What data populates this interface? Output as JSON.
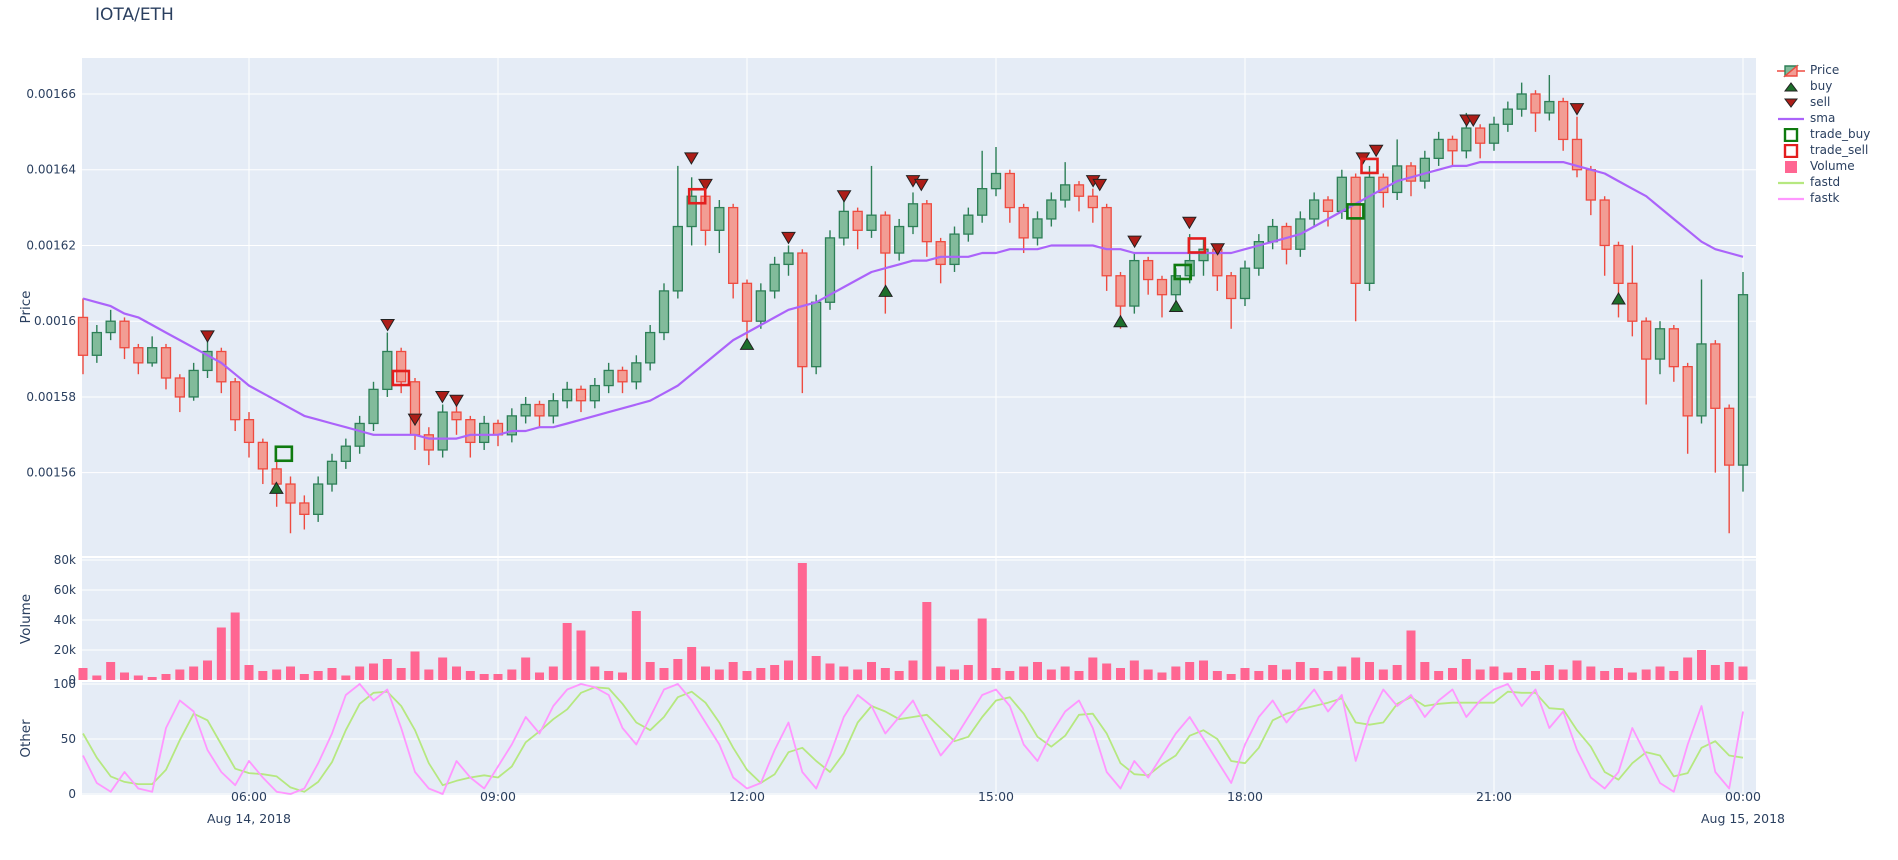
{
  "title": "IOTA/ETH",
  "colors": {
    "paper": "#ffffff",
    "plot_bg": "#e5ecf6",
    "grid": "#ffffff",
    "text": "#2a3f5f",
    "candle_up_line": "#2d7f57",
    "candle_up_fill": "#82bb9b",
    "candle_down_line": "#ee4b40",
    "candle_down_fill": "#f29d94",
    "sma": "#ab63fa",
    "volume": "#ff6692",
    "fastd": "#b6e880",
    "fastk": "#ff97ff",
    "buy_marker": "#1d6f2b",
    "sell_marker": "#ad1d18",
    "marker_edge": "#222222",
    "trade_buy": "#0f7a0f",
    "trade_sell": "#e31e1e"
  },
  "legend": {
    "items": [
      {
        "label": "Price",
        "type": "candle"
      },
      {
        "label": "buy",
        "type": "triangle-up"
      },
      {
        "label": "sell",
        "type": "triangle-down"
      },
      {
        "label": "sma",
        "type": "line",
        "color": "#ab63fa"
      },
      {
        "label": "trade_buy",
        "type": "open-square",
        "color": "#0f7a0f"
      },
      {
        "label": "trade_sell",
        "type": "open-square",
        "color": "#e31e1e"
      },
      {
        "label": "Volume",
        "type": "filled-square",
        "color": "#ff6692"
      },
      {
        "label": "fastd",
        "type": "line",
        "color": "#b6e880"
      },
      {
        "label": "fastk",
        "type": "line",
        "color": "#ff97ff"
      }
    ]
  },
  "axes": {
    "x": {
      "ticks": [
        {
          "label": "06:00",
          "t": 6
        },
        {
          "label": "09:00",
          "t": 9
        },
        {
          "label": "12:00",
          "t": 12
        },
        {
          "label": "15:00",
          "t": 15
        },
        {
          "label": "18:00",
          "t": 18
        },
        {
          "label": "21:00",
          "t": 21
        },
        {
          "label": "00:00",
          "t": 24
        }
      ],
      "date_labels": [
        {
          "label": "Aug 14, 2018",
          "t": 6
        },
        {
          "label": "Aug 15, 2018",
          "t": 24
        }
      ],
      "range_hours": [
        3.99,
        24.16
      ]
    },
    "price": {
      "title": "Price",
      "ticks": [
        {
          "label": "0.00166",
          "v": 1660
        },
        {
          "label": "0.00164",
          "v": 1640
        },
        {
          "label": "0.00162",
          "v": 1620
        },
        {
          "label": "0.0016",
          "v": 1600
        },
        {
          "label": "0.00158",
          "v": 1580
        },
        {
          "label": "0.00156",
          "v": 1560
        }
      ],
      "range_micro": [
        1538,
        1669.5
      ]
    },
    "volume": {
      "title": "Volume",
      "ticks": [
        {
          "label": "80k",
          "v": 80
        },
        {
          "label": "60k",
          "v": 60
        },
        {
          "label": "40k",
          "v": 40
        },
        {
          "label": "20k",
          "v": 20
        },
        {
          "label": "0",
          "v": 0
        }
      ],
      "range_k": [
        0,
        81.3
      ]
    },
    "other": {
      "title": "Other",
      "ticks": [
        {
          "label": "100",
          "v": 100
        },
        {
          "label": "50",
          "v": 50
        },
        {
          "label": "0",
          "v": 0
        }
      ],
      "range": [
        0,
        102
      ]
    }
  },
  "chart_data": {
    "type": "candlestick",
    "pair": "IOTA/ETH",
    "start": "2018-08-14 04:00",
    "end": "2018-08-15 00:00",
    "step_minutes": 10,
    "price_unit_note": "prices stored as micro units, value = price * 1e6 (1602 = 0.001602)",
    "ohlc_micro": [
      [
        1601,
        1606,
        1586,
        1591
      ],
      [
        1591,
        1599,
        1589,
        1597
      ],
      [
        1597,
        1603,
        1595,
        1600
      ],
      [
        1600,
        1601,
        1590,
        1593
      ],
      [
        1593,
        1594,
        1586,
        1589
      ],
      [
        1589,
        1596,
        1588,
        1593
      ],
      [
        1593,
        1594,
        1582,
        1585
      ],
      [
        1585,
        1586,
        1576,
        1580
      ],
      [
        1580,
        1589,
        1579,
        1587
      ],
      [
        1587,
        1595,
        1585,
        1592
      ],
      [
        1592,
        1593,
        1581,
        1584
      ],
      [
        1584,
        1585,
        1571,
        1574
      ],
      [
        1574,
        1576,
        1564,
        1568
      ],
      [
        1568,
        1569,
        1557,
        1561
      ],
      [
        1561,
        1563,
        1551,
        1557
      ],
      [
        1557,
        1559,
        1544,
        1552
      ],
      [
        1552,
        1554,
        1545,
        1549
      ],
      [
        1549,
        1559,
        1547,
        1557
      ],
      [
        1557,
        1565,
        1555,
        1563
      ],
      [
        1563,
        1569,
        1561,
        1567
      ],
      [
        1567,
        1575,
        1565,
        1573
      ],
      [
        1573,
        1584,
        1571,
        1582
      ],
      [
        1582,
        1597,
        1580,
        1592
      ],
      [
        1592,
        1593,
        1581,
        1584
      ],
      [
        1584,
        1585,
        1566,
        1570
      ],
      [
        1570,
        1572,
        1562,
        1566
      ],
      [
        1566,
        1578,
        1564,
        1576
      ],
      [
        1576,
        1578,
        1570,
        1574
      ],
      [
        1574,
        1575,
        1564,
        1568
      ],
      [
        1568,
        1575,
        1566,
        1573
      ],
      [
        1573,
        1574,
        1567,
        1570
      ],
      [
        1570,
        1577,
        1568,
        1575
      ],
      [
        1575,
        1580,
        1573,
        1578
      ],
      [
        1578,
        1579,
        1572,
        1575
      ],
      [
        1575,
        1581,
        1573,
        1579
      ],
      [
        1579,
        1584,
        1577,
        1582
      ],
      [
        1582,
        1583,
        1576,
        1579
      ],
      [
        1579,
        1585,
        1577,
        1583
      ],
      [
        1583,
        1589,
        1581,
        1587
      ],
      [
        1587,
        1588,
        1581,
        1584
      ],
      [
        1584,
        1591,
        1582,
        1589
      ],
      [
        1589,
        1599,
        1587,
        1597
      ],
      [
        1597,
        1610,
        1595,
        1608
      ],
      [
        1608,
        1641,
        1606,
        1625
      ],
      [
        1625,
        1638,
        1620,
        1633
      ],
      [
        1633,
        1634,
        1620,
        1624
      ],
      [
        1624,
        1632,
        1618,
        1630
      ],
      [
        1630,
        1631,
        1606,
        1610
      ],
      [
        1610,
        1611,
        1594,
        1600
      ],
      [
        1600,
        1610,
        1598,
        1608
      ],
      [
        1608,
        1617,
        1606,
        1615
      ],
      [
        1615,
        1620,
        1612,
        1618
      ],
      [
        1618,
        1619,
        1581,
        1588
      ],
      [
        1588,
        1607,
        1586,
        1605
      ],
      [
        1605,
        1624,
        1603,
        1622
      ],
      [
        1622,
        1632,
        1620,
        1629
      ],
      [
        1629,
        1630,
        1619,
        1624
      ],
      [
        1624,
        1641,
        1622,
        1628
      ],
      [
        1628,
        1629,
        1602,
        1618
      ],
      [
        1618,
        1627,
        1616,
        1625
      ],
      [
        1625,
        1634,
        1623,
        1631
      ],
      [
        1631,
        1632,
        1617,
        1621
      ],
      [
        1621,
        1622,
        1610,
        1615
      ],
      [
        1615,
        1625,
        1613,
        1623
      ],
      [
        1623,
        1630,
        1621,
        1628
      ],
      [
        1628,
        1645,
        1626,
        1635
      ],
      [
        1635,
        1646,
        1633,
        1639
      ],
      [
        1639,
        1640,
        1626,
        1630
      ],
      [
        1630,
        1631,
        1618,
        1622
      ],
      [
        1622,
        1629,
        1620,
        1627
      ],
      [
        1627,
        1634,
        1625,
        1632
      ],
      [
        1632,
        1642,
        1630,
        1636
      ],
      [
        1636,
        1637,
        1629,
        1633
      ],
      [
        1633,
        1635,
        1626,
        1630
      ],
      [
        1630,
        1631,
        1608,
        1612
      ],
      [
        1612,
        1613,
        1598,
        1604
      ],
      [
        1604,
        1618,
        1602,
        1616
      ],
      [
        1616,
        1617,
        1607,
        1611
      ],
      [
        1611,
        1612,
        1601,
        1607
      ],
      [
        1607,
        1614,
        1603,
        1612
      ],
      [
        1612,
        1623,
        1610,
        1616
      ],
      [
        1616,
        1622,
        1612,
        1619
      ],
      [
        1619,
        1620,
        1608,
        1612
      ],
      [
        1612,
        1613,
        1598,
        1606
      ],
      [
        1606,
        1616,
        1604,
        1614
      ],
      [
        1614,
        1623,
        1612,
        1621
      ],
      [
        1621,
        1627,
        1619,
        1625
      ],
      [
        1625,
        1626,
        1615,
        1619
      ],
      [
        1619,
        1629,
        1617,
        1627
      ],
      [
        1627,
        1634,
        1625,
        1632
      ],
      [
        1632,
        1633,
        1625,
        1629
      ],
      [
        1629,
        1640,
        1627,
        1638
      ],
      [
        1638,
        1639,
        1600,
        1610
      ],
      [
        1610,
        1641,
        1608,
        1638
      ],
      [
        1638,
        1639,
        1630,
        1634
      ],
      [
        1634,
        1648,
        1632,
        1641
      ],
      [
        1641,
        1642,
        1633,
        1637
      ],
      [
        1637,
        1645,
        1635,
        1643
      ],
      [
        1643,
        1650,
        1641,
        1648
      ],
      [
        1648,
        1649,
        1641,
        1645
      ],
      [
        1645,
        1655,
        1643,
        1651
      ],
      [
        1651,
        1652,
        1643,
        1647
      ],
      [
        1647,
        1654,
        1645,
        1652
      ],
      [
        1652,
        1658,
        1650,
        1656
      ],
      [
        1656,
        1663,
        1654,
        1660
      ],
      [
        1660,
        1661,
        1650,
        1655
      ],
      [
        1655,
        1665,
        1653,
        1658
      ],
      [
        1658,
        1659,
        1645,
        1648
      ],
      [
        1648,
        1654,
        1638,
        1640
      ],
      [
        1640,
        1641,
        1628,
        1632
      ],
      [
        1632,
        1633,
        1612,
        1620
      ],
      [
        1620,
        1621,
        1601,
        1610
      ],
      [
        1610,
        1620,
        1596,
        1600
      ],
      [
        1600,
        1601,
        1578,
        1590
      ],
      [
        1590,
        1600,
        1586,
        1598
      ],
      [
        1598,
        1599,
        1584,
        1588
      ],
      [
        1588,
        1589,
        1565,
        1575
      ],
      [
        1575,
        1611,
        1573,
        1594
      ],
      [
        1594,
        1595,
        1560,
        1577
      ],
      [
        1577,
        1578,
        1544,
        1562
      ],
      [
        1562,
        1613,
        1555,
        1607
      ]
    ],
    "sma_micro": [
      1606,
      1605,
      1604,
      1602,
      1601,
      1599,
      1597,
      1595,
      1593,
      1591,
      1589,
      1586,
      1583,
      1581,
      1579,
      1577,
      1575,
      1574,
      1573,
      1572,
      1571,
      1570,
      1570,
      1570,
      1570,
      1569,
      1569,
      1569,
      1570,
      1570,
      1570,
      1571,
      1571,
      1572,
      1572,
      1573,
      1574,
      1575,
      1576,
      1577,
      1578,
      1579,
      1581,
      1583,
      1586,
      1589,
      1592,
      1595,
      1597,
      1599,
      1601,
      1603,
      1604,
      1605,
      1607,
      1609,
      1611,
      1613,
      1614,
      1615,
      1616,
      1616,
      1617,
      1617,
      1617,
      1618,
      1618,
      1619,
      1619,
      1619,
      1620,
      1620,
      1620,
      1620,
      1619,
      1619,
      1618,
      1618,
      1618,
      1618,
      1618,
      1618,
      1618,
      1618,
      1619,
      1620,
      1621,
      1622,
      1623,
      1625,
      1627,
      1629,
      1631,
      1633,
      1635,
      1637,
      1638,
      1639,
      1640,
      1641,
      1641,
      1642,
      1642,
      1642,
      1642,
      1642,
      1642,
      1642,
      1641,
      1640,
      1639,
      1637,
      1635,
      1633,
      1630,
      1627,
      1624,
      1621,
      1619,
      1618,
      1617
    ],
    "volume_k": [
      8,
      3,
      12,
      5,
      3,
      2,
      4,
      7,
      9,
      13,
      35,
      45,
      10,
      6,
      7,
      9,
      4,
      6,
      8,
      3,
      9,
      11,
      14,
      8,
      19,
      7,
      15,
      9,
      6,
      4,
      4,
      7,
      15,
      5,
      9,
      38,
      33,
      9,
      6,
      5,
      46,
      12,
      8,
      14,
      22,
      9,
      7,
      12,
      6,
      8,
      10,
      13,
      78,
      16,
      11,
      9,
      7,
      12,
      8,
      6,
      13,
      52,
      9,
      7,
      10,
      41,
      8,
      6,
      9,
      12,
      7,
      9,
      6,
      15,
      11,
      8,
      13,
      7,
      5,
      9,
      12,
      13,
      6,
      4,
      8,
      6,
      10,
      7,
      12,
      8,
      6,
      9,
      15,
      12,
      7,
      10,
      33,
      12,
      6,
      8,
      14,
      7,
      9,
      5,
      8,
      6,
      10,
      7,
      13,
      9,
      6,
      8,
      5,
      7,
      9,
      6,
      15,
      20,
      10,
      12,
      9
    ],
    "fastk": [
      35,
      10,
      2,
      20,
      5,
      2,
      60,
      85,
      75,
      40,
      20,
      8,
      30,
      15,
      2,
      0,
      5,
      28,
      55,
      90,
      100,
      85,
      95,
      60,
      20,
      5,
      0,
      30,
      15,
      5,
      25,
      45,
      70,
      55,
      80,
      95,
      100,
      97,
      90,
      60,
      45,
      70,
      95,
      100,
      85,
      65,
      45,
      15,
      5,
      10,
      40,
      65,
      20,
      5,
      35,
      70,
      90,
      80,
      55,
      70,
      85,
      60,
      35,
      50,
      70,
      90,
      95,
      80,
      45,
      30,
      55,
      75,
      85,
      60,
      20,
      5,
      30,
      15,
      35,
      55,
      70,
      50,
      30,
      10,
      45,
      70,
      85,
      65,
      80,
      95,
      75,
      90,
      30,
      70,
      95,
      80,
      90,
      70,
      85,
      95,
      70,
      85,
      95,
      100,
      80,
      95,
      60,
      75,
      40,
      15,
      5,
      20,
      60,
      35,
      10,
      2,
      45,
      80,
      20,
      5,
      75
    ],
    "fastd": [
      55,
      33,
      16,
      11,
      9,
      9,
      22,
      49,
      73,
      67,
      45,
      23,
      19,
      18,
      16,
      6,
      2,
      11,
      29,
      58,
      82,
      92,
      93,
      80,
      58,
      28,
      8,
      12,
      15,
      17,
      15,
      25,
      47,
      57,
      68,
      77,
      92,
      97,
      96,
      82,
      65,
      58,
      70,
      88,
      93,
      83,
      65,
      42,
      22,
      10,
      18,
      38,
      42,
      30,
      20,
      37,
      65,
      80,
      75,
      68,
      70,
      72,
      60,
      48,
      52,
      70,
      85,
      88,
      73,
      52,
      43,
      53,
      72,
      73,
      55,
      28,
      18,
      17,
      27,
      35,
      53,
      58,
      50,
      30,
      28,
      42,
      67,
      73,
      77,
      80,
      83,
      87,
      65,
      63,
      65,
      82,
      88,
      80,
      82,
      83,
      83,
      83,
      83,
      93,
      92,
      92,
      78,
      77,
      58,
      43,
      20,
      13,
      28,
      38,
      35,
      16,
      19,
      42,
      48,
      35,
      33
    ],
    "buy_signals": [
      {
        "t": 6.33,
        "price_micro": 1556
      },
      {
        "t": 12.0,
        "price_micro": 1594
      },
      {
        "t": 13.67,
        "price_micro": 1608
      },
      {
        "t": 16.5,
        "price_micro": 1600
      },
      {
        "t": 17.17,
        "price_micro": 1604
      },
      {
        "t": 22.5,
        "price_micro": 1606
      }
    ],
    "sell_signals": [
      {
        "t": 5.5,
        "price_micro": 1596
      },
      {
        "t": 7.67,
        "price_micro": 1599
      },
      {
        "t": 8.0,
        "price_micro": 1574
      },
      {
        "t": 8.33,
        "price_micro": 1580
      },
      {
        "t": 8.5,
        "price_micro": 1579
      },
      {
        "t": 11.33,
        "price_micro": 1643
      },
      {
        "t": 11.5,
        "price_micro": 1636
      },
      {
        "t": 12.5,
        "price_micro": 1622
      },
      {
        "t": 13.17,
        "price_micro": 1633
      },
      {
        "t": 14.0,
        "price_micro": 1637
      },
      {
        "t": 14.1,
        "price_micro": 1636
      },
      {
        "t": 16.17,
        "price_micro": 1637
      },
      {
        "t": 16.25,
        "price_micro": 1636
      },
      {
        "t": 16.67,
        "price_micro": 1621
      },
      {
        "t": 17.33,
        "price_micro": 1626
      },
      {
        "t": 17.67,
        "price_micro": 1619
      },
      {
        "t": 19.42,
        "price_micro": 1643
      },
      {
        "t": 19.58,
        "price_micro": 1645
      },
      {
        "t": 20.67,
        "price_micro": 1653
      },
      {
        "t": 20.75,
        "price_micro": 1653
      },
      {
        "t": 22.0,
        "price_micro": 1656
      }
    ],
    "trade_buys": [
      {
        "t": 6.42,
        "price_micro": 1565
      },
      {
        "t": 17.25,
        "price_micro": 1613
      },
      {
        "t": 19.33,
        "price_micro": 1629
      }
    ],
    "trade_sells": [
      {
        "t": 7.83,
        "price_micro": 1585
      },
      {
        "t": 11.4,
        "price_micro": 1633
      },
      {
        "t": 17.42,
        "price_micro": 1620
      },
      {
        "t": 19.5,
        "price_micro": 1641
      }
    ]
  }
}
